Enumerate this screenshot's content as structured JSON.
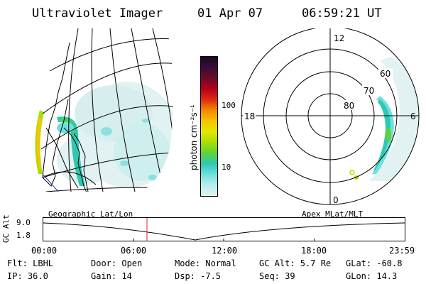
{
  "header": {
    "instrument": "Ultraviolet Imager",
    "date": "01 Apr 07",
    "time": "06:59:21 UT"
  },
  "colorbar": {
    "label": "photon cm⁻²s⁻¹",
    "ticks": [
      "100",
      "10"
    ],
    "colors": [
      "#1a0820",
      "#3b0b3c",
      "#6a0b2a",
      "#b8001a",
      "#e02a10",
      "#f28a00",
      "#f6c400",
      "#e2e600",
      "#a6e000",
      "#5fd238",
      "#2dc9b2",
      "#6fe0e0",
      "#b8eeee",
      "#e2f2f2"
    ]
  },
  "polar_plot": {
    "mlt_labels": [
      "12",
      "18",
      "6",
      "0"
    ],
    "mlat_labels": [
      "60",
      "70",
      "80"
    ]
  },
  "left_panel_label": "Geographic Lat/Lon",
  "right_panel_label": "Apex MLat/MLT",
  "altitude_plot": {
    "axis_label": "GC Alt",
    "y_ticks": [
      "9.0",
      "1.8"
    ],
    "time_ticks": [
      "00:00",
      "06:00",
      "12:00",
      "18:00",
      "23:59"
    ]
  },
  "info": {
    "filter": "Flt: LBHL",
    "door": "Door: Open",
    "mode": "Mode: Normal",
    "gc_alt": "GC Alt: 5.7 Re",
    "glat": "GLat:  -60.8",
    "ip": "IP: 36.0",
    "gain": "Gain: 14",
    "dsp": "Dsp:   -7.5",
    "seq": "Seq: 39",
    "glon": "GLon:  14.3"
  }
}
